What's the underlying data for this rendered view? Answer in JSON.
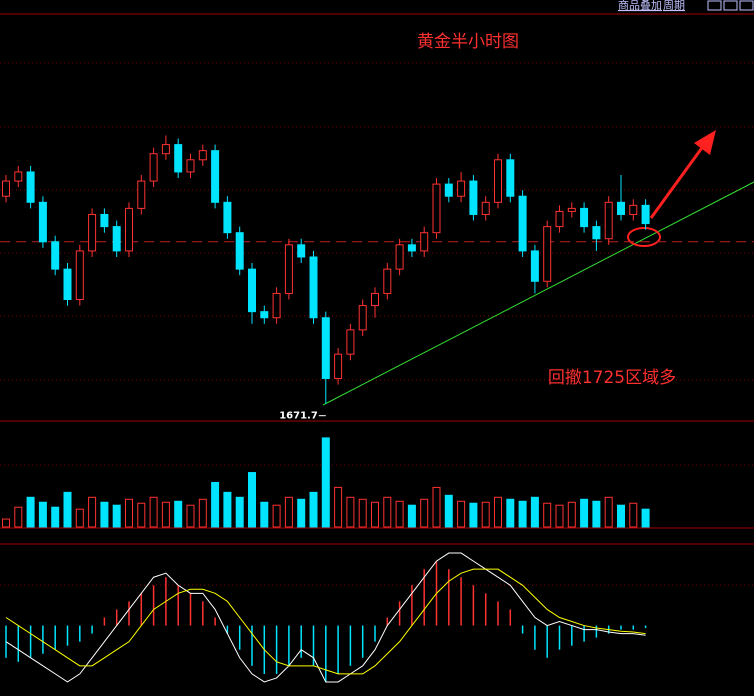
{
  "toolbar": {
    "items": [
      "商品叠加",
      "周期"
    ]
  },
  "chart_data": {
    "type": "candlestick",
    "title": "黄金半小时图",
    "annotation": "回撤1725区域多",
    "up_color": "#ff3232",
    "down_color": "#00e4ff",
    "ylim": [
      1666,
      1800
    ],
    "reference_line": 1725,
    "open": [
      1740,
      1745,
      1748,
      1738,
      1725,
      1716,
      1706,
      1722,
      1734,
      1730,
      1722,
      1736,
      1745,
      1754,
      1757,
      1748,
      1752,
      1755,
      1738,
      1728,
      1716,
      1702,
      1700,
      1708,
      1724,
      1720,
      1700,
      1680,
      1688,
      1696,
      1704,
      1708,
      1716,
      1724,
      1722,
      1728,
      1744,
      1740,
      1745,
      1734,
      1738,
      1752,
      1740,
      1722,
      1712,
      1730,
      1735,
      1736,
      1730,
      1726,
      1738,
      1734,
      1737
    ],
    "high": [
      1747,
      1750,
      1750,
      1740,
      1727,
      1718,
      1724,
      1736,
      1736,
      1732,
      1738,
      1747,
      1756,
      1760,
      1759,
      1754,
      1757,
      1757,
      1740,
      1730,
      1718,
      1704,
      1710,
      1726,
      1726,
      1722,
      1702,
      1690,
      1698,
      1706,
      1710,
      1718,
      1726,
      1726,
      1730,
      1746,
      1746,
      1748,
      1747,
      1740,
      1754,
      1754,
      1742,
      1724,
      1732,
      1737,
      1738,
      1738,
      1732,
      1740,
      1747,
      1739,
      1739
    ],
    "low": [
      1738,
      1743,
      1736,
      1723,
      1714,
      1704,
      1704,
      1720,
      1728,
      1720,
      1720,
      1734,
      1743,
      1752,
      1746,
      1746,
      1750,
      1736,
      1726,
      1714,
      1698,
      1698,
      1698,
      1706,
      1718,
      1698,
      1671.7,
      1678,
      1686,
      1694,
      1700,
      1706,
      1714,
      1720,
      1720,
      1726,
      1738,
      1738,
      1732,
      1732,
      1736,
      1738,
      1720,
      1708,
      1710,
      1728,
      1733,
      1728,
      1722,
      1724,
      1732,
      1732,
      1729
    ],
    "close": [
      1745,
      1748,
      1738,
      1725,
      1716,
      1706,
      1722,
      1734,
      1730,
      1722,
      1736,
      1745,
      1754,
      1757,
      1748,
      1752,
      1755,
      1738,
      1728,
      1716,
      1702,
      1700,
      1708,
      1724,
      1720,
      1700,
      1680,
      1688,
      1696,
      1704,
      1708,
      1716,
      1724,
      1722,
      1728,
      1744,
      1740,
      1745,
      1734,
      1738,
      1752,
      1740,
      1722,
      1712,
      1730,
      1735,
      1736,
      1730,
      1726,
      1738,
      1734,
      1737,
      1731
    ],
    "volume": {
      "ylim": [
        0,
        100
      ],
      "values": [
        8,
        20,
        30,
        25,
        20,
        35,
        18,
        30,
        25,
        22,
        28,
        24,
        30,
        25,
        26,
        22,
        28,
        45,
        35,
        30,
        55,
        25,
        22,
        30,
        28,
        35,
        90,
        40,
        30,
        28,
        25,
        30,
        26,
        22,
        28,
        40,
        32,
        26,
        24,
        25,
        30,
        28,
        26,
        30,
        24,
        22,
        25,
        28,
        26,
        30,
        22,
        24,
        18
      ]
    },
    "macd": {
      "ylim": [
        -8,
        10
      ],
      "dif_color": "#ffffff",
      "dea_color": "#ffff00",
      "histogram": [
        -4,
        -4.5,
        -4,
        -3.5,
        -3,
        -2.5,
        -2,
        -1,
        1,
        2,
        3,
        4,
        5,
        6,
        5,
        4,
        3,
        1,
        -1,
        -3,
        -5,
        -6,
        -6,
        -5,
        -4,
        -5,
        -7,
        -6,
        -5,
        -4,
        -2,
        1,
        3,
        5,
        7,
        8,
        7,
        6,
        5,
        4,
        3,
        2,
        -1,
        -3,
        -4,
        -3,
        -2.5,
        -2,
        -1.5,
        -1,
        -0.5,
        -0.5,
        -0.3
      ],
      "dif": [
        -2,
        -3,
        -4,
        -5,
        -6,
        -7,
        -6,
        -4,
        -2,
        0,
        2,
        4,
        6,
        6.5,
        5,
        4,
        4,
        2,
        -1,
        -4,
        -6,
        -7,
        -6.5,
        -5,
        -3,
        -4,
        -7,
        -7,
        -6,
        -5,
        -3,
        0,
        2,
        4,
        6,
        8,
        9,
        9,
        8,
        7,
        6,
        5,
        3,
        1,
        0,
        0.5,
        0,
        -0.5,
        -0.5,
        -0.8,
        -1,
        -1,
        -1.2
      ],
      "dea": [
        1,
        0,
        -1,
        -2,
        -3,
        -4,
        -5,
        -5,
        -4,
        -3,
        -2,
        0,
        2,
        3,
        4,
        4.5,
        4.5,
        4,
        3,
        1,
        -1,
        -3,
        -4.5,
        -5,
        -5,
        -5,
        -5.5,
        -6,
        -6,
        -6,
        -5,
        -3.5,
        -2,
        0,
        2,
        4,
        5.5,
        6.5,
        7,
        7,
        7,
        6,
        5,
        3.5,
        2,
        1,
        0.5,
        0,
        -0.3,
        -0.5,
        -0.7,
        -0.8,
        -1
      ]
    }
  }
}
